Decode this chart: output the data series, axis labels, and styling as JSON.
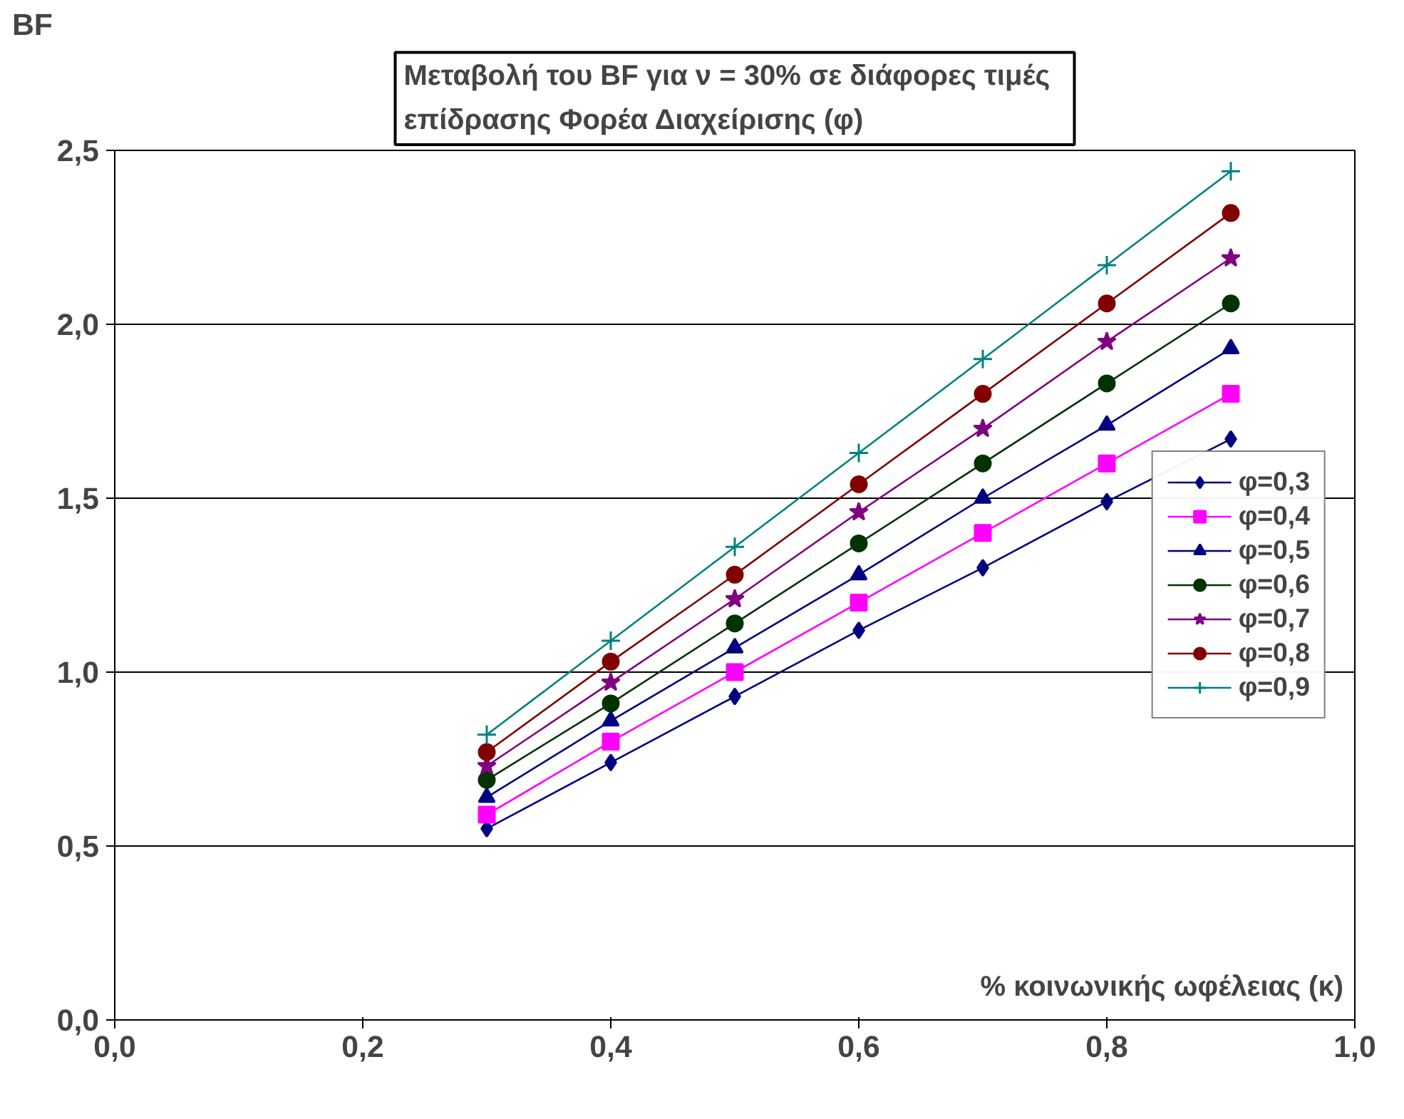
{
  "chart_data": {
    "type": "line",
    "title": "Μεταβολή του  BF για ν = 30%  σε διάφορες τιμές\nεπίδρασης Φορέα Διαχείρισης (φ)",
    "xlabel": "% κοινωνικής ωφέλειας (κ)",
    "ylabel": "BF",
    "x": [
      0.3,
      0.4,
      0.5,
      0.6,
      0.7,
      0.8,
      0.9
    ],
    "series": [
      {
        "name": "φ=0,3",
        "color": "#000080",
        "marker": "diamond",
        "values": [
          0.55,
          0.74,
          0.93,
          1.12,
          1.3,
          1.49,
          1.67
        ]
      },
      {
        "name": "φ=0,4",
        "color": "#ff00ff",
        "marker": "square",
        "values": [
          0.59,
          0.8,
          1.0,
          1.2,
          1.4,
          1.6,
          1.8
        ]
      },
      {
        "name": "φ=0,5",
        "color": "#000080",
        "marker": "triangle",
        "values": [
          0.64,
          0.86,
          1.07,
          1.28,
          1.5,
          1.71,
          1.93
        ]
      },
      {
        "name": "φ=0,6",
        "color": "#003300",
        "marker": "circle",
        "values": [
          0.69,
          0.91,
          1.14,
          1.37,
          1.6,
          1.83,
          2.06
        ]
      },
      {
        "name": "φ=0,7",
        "color": "#800080",
        "marker": "star",
        "values": [
          0.73,
          0.97,
          1.21,
          1.46,
          1.7,
          1.95,
          2.19
        ]
      },
      {
        "name": "φ=0,8",
        "color": "#800000",
        "marker": "circle",
        "values": [
          0.77,
          1.03,
          1.28,
          1.54,
          1.8,
          2.06,
          2.32
        ]
      },
      {
        "name": "φ=0,9",
        "color": "#008080",
        "marker": "cross",
        "values": [
          0.82,
          1.09,
          1.36,
          1.63,
          1.9,
          2.17,
          2.44
        ]
      }
    ],
    "xlim": [
      0,
      1
    ],
    "ylim": [
      0,
      2.5
    ],
    "xticks": [
      {
        "value": 0,
        "label": "0,0"
      },
      {
        "value": 0.2,
        "label": "0,2"
      },
      {
        "value": 0.4,
        "label": "0,4"
      },
      {
        "value": 0.6,
        "label": "0,6"
      },
      {
        "value": 0.8,
        "label": "0,8"
      },
      {
        "value": 1,
        "label": "1,0"
      }
    ],
    "yticks": [
      {
        "value": 0,
        "label": "0,0"
      },
      {
        "value": 0.5,
        "label": "0,5"
      },
      {
        "value": 1,
        "label": "1,0"
      },
      {
        "value": 1.5,
        "label": "1,5"
      },
      {
        "value": 2,
        "label": "2,0"
      },
      {
        "value": 2.5,
        "label": "2,5"
      }
    ],
    "grid": "y",
    "legend": "right",
    "line_style": "solid"
  }
}
